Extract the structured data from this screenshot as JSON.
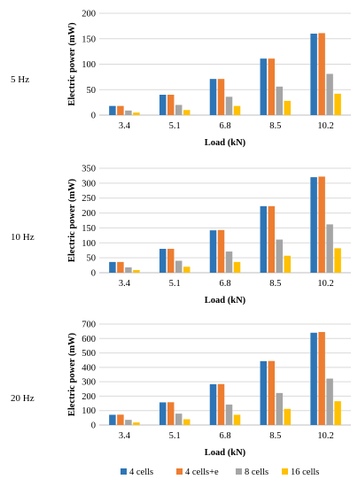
{
  "chart_data": [
    {
      "type": "bar",
      "row_label": "5 Hz",
      "categories": [
        "3.4",
        "5.1",
        "6.8",
        "8.5",
        "10.2"
      ],
      "series": [
        {
          "name": "4 cells",
          "values": [
            18,
            40,
            71,
            111,
            160
          ]
        },
        {
          "name": "4 cells+e",
          "values": [
            18,
            40,
            71,
            111,
            161
          ]
        },
        {
          "name": "8 cells",
          "values": [
            9,
            20,
            36,
            56,
            81
          ]
        },
        {
          "name": "16 cells",
          "values": [
            5,
            10,
            18,
            28,
            42
          ]
        }
      ],
      "xlabel": "Load (kN)",
      "ylabel": "Electric power (mW)",
      "ylim": [
        0,
        200
      ],
      "yticks": [
        0,
        50,
        100,
        150,
        200
      ],
      "grid": true
    },
    {
      "type": "bar",
      "row_label": "10 Hz",
      "categories": [
        "3.4",
        "5.1",
        "6.8",
        "8.5",
        "10.2"
      ],
      "series": [
        {
          "name": "4 cells",
          "values": [
            36,
            80,
            142,
            223,
            320
          ]
        },
        {
          "name": "4 cells+e",
          "values": [
            36,
            80,
            143,
            223,
            322
          ]
        },
        {
          "name": "8 cells",
          "values": [
            18,
            40,
            71,
            111,
            162
          ]
        },
        {
          "name": "16 cells",
          "values": [
            9,
            20,
            36,
            57,
            82
          ]
        }
      ],
      "xlabel": "Load (kN)",
      "ylabel": "Electric power (mW)",
      "ylim": [
        0,
        350
      ],
      "yticks": [
        0,
        50,
        100,
        150,
        200,
        250,
        300,
        350
      ],
      "grid": true
    },
    {
      "type": "bar",
      "row_label": "20 Hz",
      "categories": [
        "3.4",
        "5.1",
        "6.8",
        "8.5",
        "10.2"
      ],
      "series": [
        {
          "name": "4 cells",
          "values": [
            71,
            157,
            283,
            443,
            640
          ]
        },
        {
          "name": "4 cells+e",
          "values": [
            72,
            158,
            284,
            444,
            645
          ]
        },
        {
          "name": "8 cells",
          "values": [
            36,
            79,
            142,
            222,
            322
          ]
        },
        {
          "name": "16 cells",
          "values": [
            18,
            40,
            71,
            112,
            165
          ]
        }
      ],
      "xlabel": "Load (kN)",
      "ylabel": "Electric power (mW)",
      "ylim": [
        0,
        700
      ],
      "yticks": [
        0,
        100,
        200,
        300,
        400,
        500,
        600,
        700
      ],
      "grid": true
    }
  ],
  "legend": {
    "placement": "bottom",
    "entries": [
      "4 cells",
      "4 cells+e",
      "8 cells",
      "16 cells"
    ]
  },
  "colors": {
    "4 cells": "#2e75b6",
    "4 cells+e": "#ed7d31",
    "8 cells": "#a5a5a5",
    "16 cells": "#ffc000",
    "grid": "#d9d9d9",
    "axis": "#bfbfbf"
  }
}
